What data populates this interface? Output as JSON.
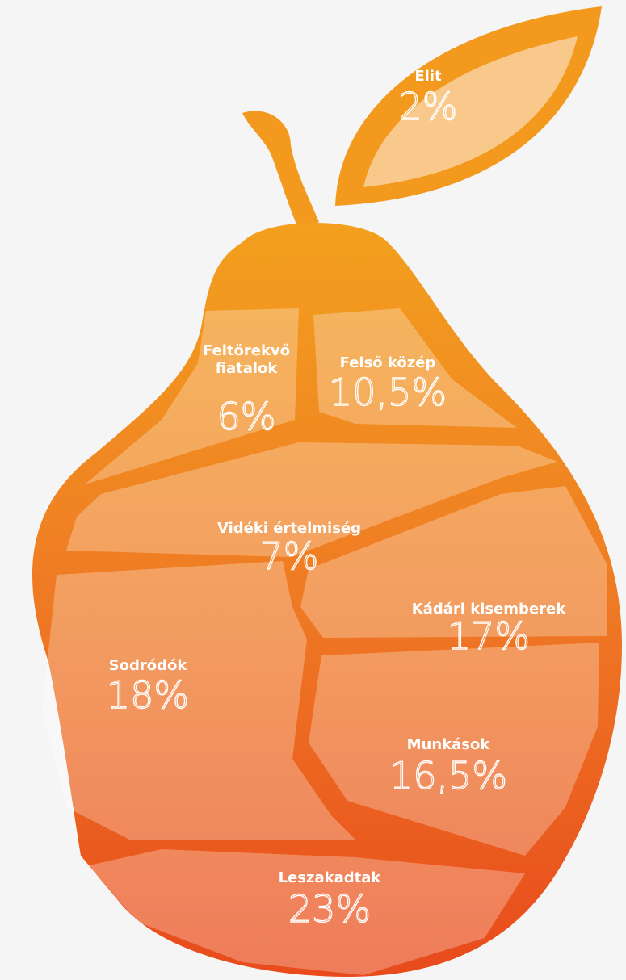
{
  "segments": [
    {
      "name_lines": [
        "Elit"
      ],
      "share": "2%"
    },
    {
      "name_lines": [
        "Feltörekvő",
        "fiatalok"
      ],
      "share": "6%"
    },
    {
      "name_lines": [
        "Felső közép"
      ],
      "share": "10,5%"
    },
    {
      "name_lines": [
        "Vidéki értelmiség"
      ],
      "share": "7%"
    },
    {
      "name_lines": [
        "Kádári kisemberek"
      ],
      "share": "17%"
    },
    {
      "name_lines": [
        "Sodródók"
      ],
      "share": "18%"
    },
    {
      "name_lines": [
        "Munkások"
      ],
      "share": "16,5%"
    },
    {
      "name_lines": [
        "Leszakadtak"
      ],
      "share": "23%"
    }
  ]
}
